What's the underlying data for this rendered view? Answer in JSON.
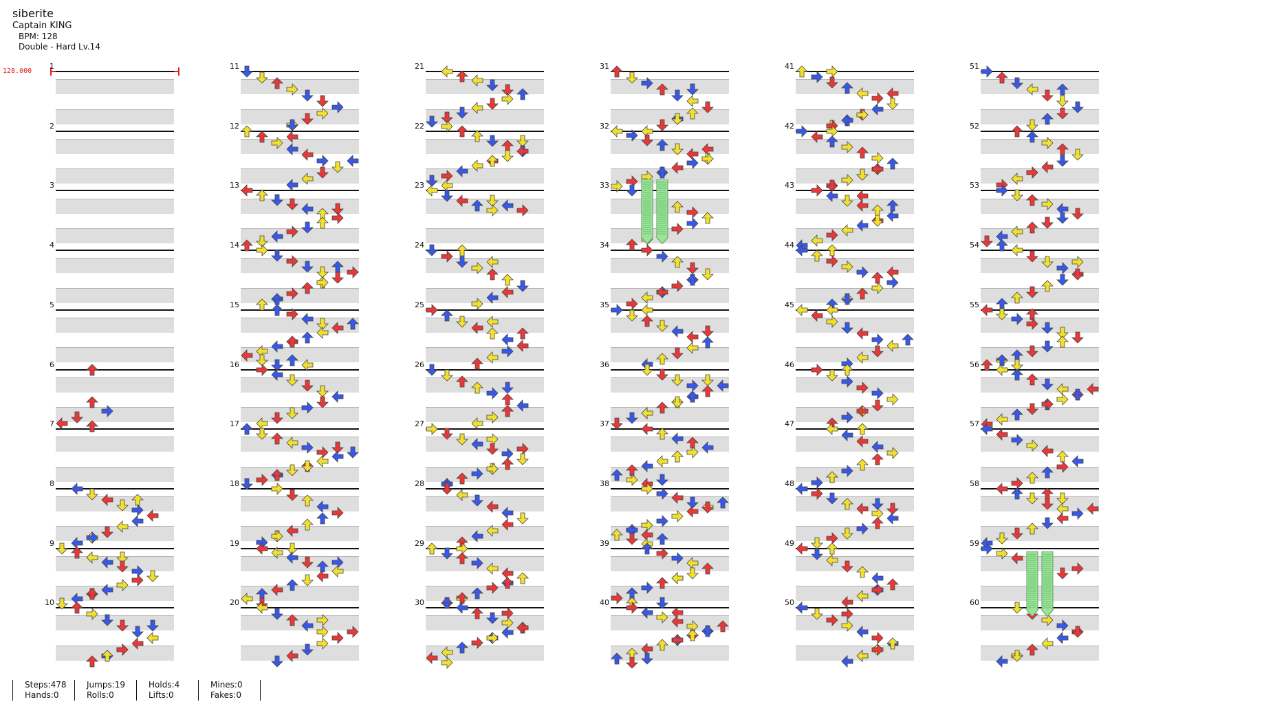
{
  "header": {
    "title": "siberite",
    "artist": "Captain KING",
    "bpm": "BPM: 128",
    "difficulty": "Double - Hard  Lv.14"
  },
  "bpm_marker": "128.000",
  "colors": {
    "red": "#e83838",
    "blue": "#3858e8",
    "yellow": "#f2e030",
    "hold": "#9be39b",
    "stripe": "#dedede",
    "bpm": "#e02020"
  },
  "measure_numbers": [
    "1",
    "2",
    "3",
    "4",
    "5",
    "6",
    "7",
    "8",
    "9",
    "10",
    "11",
    "12",
    "13",
    "14",
    "15",
    "16",
    "17",
    "18",
    "19",
    "20",
    "21",
    "22",
    "23",
    "24",
    "25",
    "26",
    "27",
    "28",
    "29",
    "30",
    "31",
    "32",
    "33",
    "34",
    "35",
    "36",
    "37",
    "38",
    "39",
    "40",
    "41",
    "42",
    "43",
    "44",
    "45",
    "46",
    "47",
    "48",
    "49",
    "50",
    "51",
    "52",
    "53",
    "54",
    "55",
    "56",
    "57",
    "58",
    "59",
    "60"
  ],
  "chart_data": {
    "type": "step-chart",
    "columns": 8,
    "measures_per_column_group": 10,
    "notes_note": "each note: [measure, beat_offset(0-4), lane(0-7), direction]",
    "notes": [
      [
        6,
        0,
        5,
        "up"
      ],
      [
        7,
        -1,
        5,
        "up"
      ],
      [
        7,
        -0.5,
        6,
        "right"
      ],
      [
        7,
        -0.2,
        3,
        "down"
      ],
      [
        7,
        0,
        0,
        "left"
      ],
      [
        7,
        0,
        5,
        "up"
      ],
      [
        8,
        0,
        0,
        "left"
      ],
      [
        8,
        0.2,
        4,
        "up"
      ],
      [
        8,
        0.4,
        0,
        "left"
      ],
      [
        8,
        0.4,
        2,
        "down"
      ],
      [
        8,
        0.7,
        0,
        "left"
      ],
      [
        8,
        0.7,
        2,
        "down"
      ],
      [
        8,
        0.9,
        4,
        "up"
      ],
      [
        8,
        1.0,
        6,
        "right"
      ],
      [
        8,
        1.1,
        2,
        "down"
      ],
      [
        8,
        1.2,
        8,
        "left"
      ],
      [
        8,
        1.3,
        6,
        "right"
      ],
      [
        8,
        1.4,
        9,
        "left"
      ],
      [
        8,
        1.5,
        6,
        "down"
      ],
      [
        9,
        0.5,
        11,
        "up"
      ],
      [
        9,
        0.7,
        13,
        "right"
      ],
      [
        9,
        0.9,
        11,
        "down"
      ],
      [
        9,
        1.1,
        13,
        "right"
      ],
      [
        9,
        1.3,
        12,
        "up"
      ],
      [
        9,
        1.5,
        10,
        "left"
      ],
      [
        9,
        1.7,
        11,
        "down"
      ],
      [
        10,
        0,
        12,
        "up"
      ],
      [
        10,
        0.3,
        11,
        "down"
      ],
      [
        10,
        0.4,
        13,
        "right"
      ],
      [
        10,
        0.6,
        13,
        "right"
      ],
      [
        10,
        0.7,
        12,
        "up"
      ],
      [
        10,
        0.8,
        11,
        "down"
      ],
      [
        10,
        1.0,
        9,
        "left"
      ],
      [
        10,
        1.1,
        7,
        "right"
      ],
      [
        10,
        1.3,
        7,
        "right"
      ]
    ],
    "holds": [
      {
        "measure": 33,
        "lane": 2,
        "color": "green"
      },
      {
        "measure": 33,
        "lane": 3,
        "color": "green"
      },
      {
        "measure": 59,
        "lane": 3,
        "color": "green"
      },
      {
        "measure": 59,
        "lane": 4,
        "color": "green"
      }
    ]
  },
  "stats": {
    "steps": "Steps:478",
    "hands": "Hands:0",
    "jumps": "Jumps:19",
    "rolls": "Rolls:0",
    "holds": "Holds:4",
    "lifts": "Lifts:0",
    "mines": "Mines:0",
    "fakes": "Fakes:0"
  }
}
